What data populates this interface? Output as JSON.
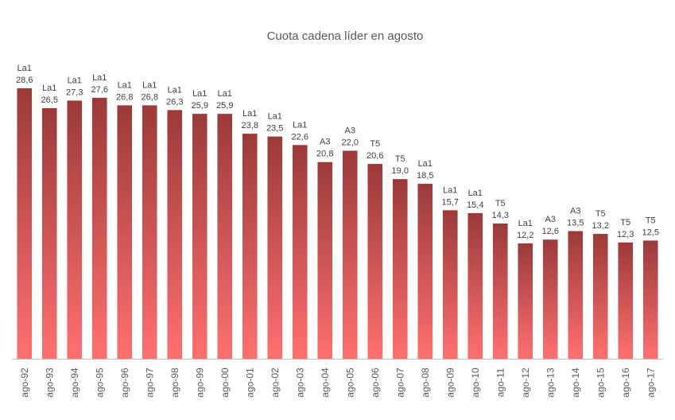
{
  "chart_data": {
    "type": "bar",
    "title": "Cuota cadena líder en agosto",
    "xlabel": "",
    "ylabel": "",
    "ylim": [
      0,
      30
    ],
    "grid": false,
    "legend": "none",
    "colors": {
      "bar_top": "#9b3a3a",
      "bar_bottom": "#ff7070",
      "axis": "#bfbfbf",
      "text": "#404040"
    },
    "categories": [
      "ago-92",
      "ago-93",
      "ago-94",
      "ago-95",
      "ago-96",
      "ago-97",
      "ago-98",
      "ago-99",
      "ago-00",
      "ago-01",
      "ago-02",
      "ago-03",
      "ago-04",
      "ago-05",
      "ago-06",
      "ago-07",
      "ago-08",
      "ago-09",
      "ago-10",
      "ago-11",
      "ago-12",
      "ago-13",
      "ago-14",
      "ago-15",
      "ago-16",
      "ago-17"
    ],
    "values": [
      28.6,
      26.5,
      27.3,
      27.6,
      26.8,
      26.8,
      26.3,
      25.9,
      25.9,
      23.8,
      23.5,
      22.6,
      20.8,
      22.0,
      20.6,
      19.0,
      18.5,
      15.7,
      15.4,
      14.3,
      12.2,
      12.6,
      13.5,
      13.2,
      12.3,
      12.5
    ],
    "value_labels": [
      "28,6",
      "26,5",
      "27,3",
      "27,6",
      "26,8",
      "26,8",
      "26,3",
      "25,9",
      "25,9",
      "23,8",
      "23,5",
      "22,6",
      "20,8",
      "22,0",
      "20,6",
      "19,0",
      "18,5",
      "15,7",
      "15,4",
      "14,3",
      "12,2",
      "12,6",
      "13,5",
      "13,2",
      "12,3",
      "12,5"
    ],
    "channel_labels": [
      "La1",
      "La1",
      "La1",
      "La1",
      "La1",
      "La1",
      "La1",
      "La1",
      "La1",
      "La1",
      "La1",
      "La1",
      "A3",
      "A3",
      "T5",
      "T5",
      "La1",
      "La1",
      "La1",
      "T5",
      "La1",
      "A3",
      "A3",
      "T5",
      "T5",
      "T5"
    ]
  }
}
